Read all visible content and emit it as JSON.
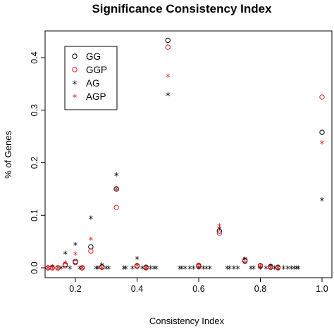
{
  "chart_data": {
    "type": "scatter",
    "title": "Significance Consistency Index",
    "xlabel": "Consistency Index",
    "ylabel": "% of Genes",
    "xlim": [
      0.1,
      1.0
    ],
    "ylim": [
      0,
      0.43
    ],
    "xticks": [
      "0.2",
      "0.4",
      "0.6",
      "0.8",
      "1.0"
    ],
    "xtick_values": [
      0.2,
      0.4,
      0.6,
      0.8,
      1.0
    ],
    "yticks": [
      "0.0",
      "0.1",
      "0.2",
      "0.3",
      "0.4"
    ],
    "ytick_values": [
      0.0,
      0.1,
      0.2,
      0.3,
      0.4
    ],
    "legend_position": "top-left",
    "grid": false,
    "series": [
      {
        "name": "GG",
        "marker": "circle",
        "color": "#000000",
        "points": [
          [
            0.111,
            0.0
          ],
          [
            0.125,
            0.0
          ],
          [
            0.143,
            0.0
          ],
          [
            0.167,
            0.006
          ],
          [
            0.2,
            0.012
          ],
          [
            0.222,
            0.0
          ],
          [
            0.25,
            0.04
          ],
          [
            0.286,
            0.002
          ],
          [
            0.333,
            0.15
          ],
          [
            0.4,
            0.004
          ],
          [
            0.429,
            0.001
          ],
          [
            0.5,
            0.433
          ],
          [
            0.6,
            0.003
          ],
          [
            0.667,
            0.07
          ],
          [
            0.75,
            0.013
          ],
          [
            0.8,
            0.004
          ],
          [
            0.833,
            0.002
          ],
          [
            0.857,
            0.001
          ],
          [
            1.0,
            0.258
          ]
        ]
      },
      {
        "name": "GGP",
        "marker": "circle",
        "color": "#e8191c",
        "points": [
          [
            0.111,
            0.0
          ],
          [
            0.125,
            0.0
          ],
          [
            0.143,
            0.0
          ],
          [
            0.167,
            0.004
          ],
          [
            0.2,
            0.01
          ],
          [
            0.222,
            0.0
          ],
          [
            0.25,
            0.032
          ],
          [
            0.286,
            0.001
          ],
          [
            0.333,
            0.115
          ],
          [
            0.4,
            0.003
          ],
          [
            0.429,
            0.0
          ],
          [
            0.5,
            0.42
          ],
          [
            0.6,
            0.005
          ],
          [
            0.667,
            0.066
          ],
          [
            0.75,
            0.015
          ],
          [
            0.8,
            0.003
          ],
          [
            0.833,
            0.001
          ],
          [
            0.857,
            0.0
          ],
          [
            1.0,
            0.325
          ]
        ]
      },
      {
        "name": "AG",
        "marker": "asterisk",
        "color": "#000000",
        "points": [
          [
            0.111,
            0.0
          ],
          [
            0.125,
            0.003
          ],
          [
            0.143,
            0.0
          ],
          [
            0.154,
            0.0
          ],
          [
            0.167,
            0.028
          ],
          [
            0.182,
            0.0
          ],
          [
            0.2,
            0.045
          ],
          [
            0.214,
            0.0
          ],
          [
            0.222,
            0.0
          ],
          [
            0.25,
            0.095
          ],
          [
            0.267,
            0.0
          ],
          [
            0.273,
            0.0
          ],
          [
            0.286,
            0.006
          ],
          [
            0.3,
            0.0
          ],
          [
            0.308,
            0.0
          ],
          [
            0.333,
            0.177
          ],
          [
            0.357,
            0.0
          ],
          [
            0.364,
            0.0
          ],
          [
            0.385,
            0.0
          ],
          [
            0.4,
            0.018
          ],
          [
            0.417,
            0.0
          ],
          [
            0.429,
            0.0
          ],
          [
            0.444,
            0.0
          ],
          [
            0.455,
            0.0
          ],
          [
            0.462,
            0.0
          ],
          [
            0.5,
            0.33
          ],
          [
            0.538,
            0.0
          ],
          [
            0.545,
            0.0
          ],
          [
            0.556,
            0.0
          ],
          [
            0.571,
            0.0
          ],
          [
            0.583,
            0.0
          ],
          [
            0.6,
            0.0
          ],
          [
            0.615,
            0.0
          ],
          [
            0.625,
            0.0
          ],
          [
            0.636,
            0.0
          ],
          [
            0.667,
            0.075
          ],
          [
            0.692,
            0.0
          ],
          [
            0.7,
            0.0
          ],
          [
            0.714,
            0.0
          ],
          [
            0.727,
            0.0
          ],
          [
            0.75,
            0.017
          ],
          [
            0.769,
            0.0
          ],
          [
            0.778,
            0.0
          ],
          [
            0.8,
            0.0
          ],
          [
            0.818,
            0.0
          ],
          [
            0.833,
            0.004
          ],
          [
            0.846,
            0.0
          ],
          [
            0.857,
            0.0
          ],
          [
            0.875,
            0.0
          ],
          [
            0.889,
            0.0
          ],
          [
            0.9,
            0.0
          ],
          [
            0.909,
            0.0
          ],
          [
            0.917,
            0.0
          ],
          [
            0.923,
            0.0
          ],
          [
            1.0,
            0.13
          ]
        ]
      },
      {
        "name": "AGP",
        "marker": "asterisk",
        "color": "#e8191c",
        "points": [
          [
            0.111,
            0.0
          ],
          [
            0.125,
            0.0
          ],
          [
            0.143,
            0.0
          ],
          [
            0.167,
            0.01
          ],
          [
            0.2,
            0.027
          ],
          [
            0.222,
            0.0
          ],
          [
            0.25,
            0.055
          ],
          [
            0.286,
            0.0
          ],
          [
            0.333,
            0.15
          ],
          [
            0.4,
            0.005
          ],
          [
            0.429,
            0.0
          ],
          [
            0.5,
            0.365
          ],
          [
            0.6,
            0.002
          ],
          [
            0.667,
            0.08
          ],
          [
            0.75,
            0.01
          ],
          [
            0.8,
            0.003
          ],
          [
            0.833,
            0.0
          ],
          [
            0.857,
            0.0
          ],
          [
            1.0,
            0.238
          ]
        ]
      }
    ]
  }
}
